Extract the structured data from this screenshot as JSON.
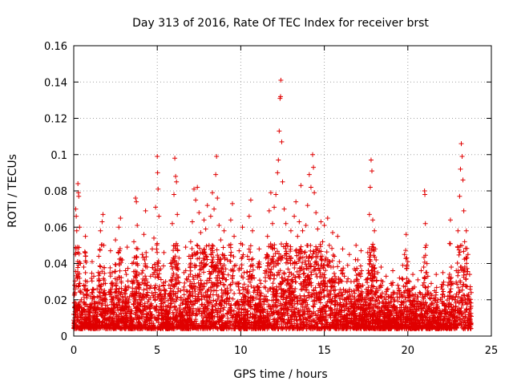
{
  "chart_data": {
    "type": "scatter",
    "title": "Day 313 of 2016, Rate Of TEC Index for receiver brst",
    "xlabel": "GPS time / hours",
    "ylabel": "ROTI / TECUs",
    "xlim": [
      0,
      25
    ],
    "ylim": [
      0,
      0.16
    ],
    "x_ticks": [
      0,
      5,
      10,
      15,
      20,
      25
    ],
    "y_ticks": [
      0,
      0.02,
      0.04,
      0.06,
      0.08,
      0.1,
      0.12,
      0.14,
      0.16
    ],
    "x_tick_labels": [
      "0",
      "5",
      "10",
      "15",
      "20",
      "25"
    ],
    "y_tick_labels": [
      "0",
      "0.02",
      "0.04",
      "0.06",
      "0.08",
      "0.1",
      "0.12",
      "0.14",
      "0.16"
    ],
    "grid": true,
    "marker": "+",
    "color": "#e00000",
    "series": [
      {
        "points": [
          [
            0.0,
            0.012
          ],
          [
            0.05,
            0.028
          ],
          [
            0.1,
            0.045
          ],
          [
            0.12,
            0.07
          ],
          [
            0.15,
            0.066
          ],
          [
            0.18,
            0.058
          ],
          [
            0.2,
            0.032
          ],
          [
            0.25,
            0.084
          ],
          [
            0.28,
            0.079
          ],
          [
            0.3,
            0.077
          ],
          [
            0.35,
            0.06
          ],
          [
            0.4,
            0.04
          ],
          [
            0.45,
            0.02
          ],
          [
            0.5,
            0.013
          ],
          [
            0.6,
            0.038
          ],
          [
            0.7,
            0.055
          ],
          [
            0.8,
            0.03
          ],
          [
            0.9,
            0.015
          ],
          [
            1.0,
            0.022
          ],
          [
            1.1,
            0.041
          ],
          [
            1.2,
            0.033
          ],
          [
            1.3,
            0.018
          ],
          [
            1.4,
            0.026
          ],
          [
            1.5,
            0.044
          ],
          [
            1.6,
            0.058
          ],
          [
            1.7,
            0.063
          ],
          [
            1.75,
            0.067
          ],
          [
            1.8,
            0.05
          ],
          [
            1.9,
            0.029
          ],
          [
            2.0,
            0.017
          ],
          [
            2.1,
            0.024
          ],
          [
            2.2,
            0.047
          ],
          [
            2.3,
            0.035
          ],
          [
            2.4,
            0.021
          ],
          [
            2.5,
            0.053
          ],
          [
            2.6,
            0.031
          ],
          [
            2.7,
            0.06
          ],
          [
            2.8,
            0.065
          ],
          [
            2.9,
            0.042
          ],
          [
            3.0,
            0.019
          ],
          [
            3.1,
            0.036
          ],
          [
            3.2,
            0.049
          ],
          [
            3.3,
            0.027
          ],
          [
            3.4,
            0.014
          ],
          [
            3.5,
            0.04
          ],
          [
            3.6,
            0.052
          ],
          [
            3.7,
            0.076
          ],
          [
            3.75,
            0.074
          ],
          [
            3.8,
            0.061
          ],
          [
            3.9,
            0.034
          ],
          [
            4.0,
            0.023
          ],
          [
            4.1,
            0.045
          ],
          [
            4.2,
            0.056
          ],
          [
            4.3,
            0.069
          ],
          [
            4.4,
            0.038
          ],
          [
            4.5,
            0.02
          ],
          [
            4.6,
            0.033
          ],
          [
            4.7,
            0.048
          ],
          [
            4.8,
            0.054
          ],
          [
            4.9,
            0.071
          ],
          [
            5.0,
            0.099
          ],
          [
            5.02,
            0.09
          ],
          [
            5.05,
            0.081
          ],
          [
            5.1,
            0.066
          ],
          [
            5.2,
            0.037
          ],
          [
            5.3,
            0.022
          ],
          [
            5.4,
            0.046
          ],
          [
            5.5,
            0.03
          ],
          [
            5.6,
            0.016
          ],
          [
            5.7,
            0.028
          ],
          [
            5.8,
            0.04
          ],
          [
            5.9,
            0.062
          ],
          [
            6.0,
            0.078
          ],
          [
            6.05,
            0.098
          ],
          [
            6.1,
            0.088
          ],
          [
            6.15,
            0.085
          ],
          [
            6.2,
            0.067
          ],
          [
            6.3,
            0.043
          ],
          [
            6.4,
            0.025
          ],
          [
            6.5,
            0.018
          ],
          [
            6.6,
            0.035
          ],
          [
            6.7,
            0.049
          ],
          [
            6.8,
            0.031
          ],
          [
            6.9,
            0.044
          ],
          [
            7.0,
            0.052
          ],
          [
            7.1,
            0.063
          ],
          [
            7.2,
            0.081
          ],
          [
            7.3,
            0.075
          ],
          [
            7.4,
            0.082
          ],
          [
            7.5,
            0.068
          ],
          [
            7.6,
            0.057
          ],
          [
            7.7,
            0.046
          ],
          [
            7.8,
            0.064
          ],
          [
            7.9,
            0.059
          ],
          [
            8.0,
            0.072
          ],
          [
            8.1,
            0.05
          ],
          [
            8.2,
            0.066
          ],
          [
            8.3,
            0.079
          ],
          [
            8.4,
            0.07
          ],
          [
            8.5,
            0.089
          ],
          [
            8.55,
            0.099
          ],
          [
            8.6,
            0.076
          ],
          [
            8.7,
            0.061
          ],
          [
            8.8,
            0.053
          ],
          [
            8.9,
            0.045
          ],
          [
            9.0,
            0.058
          ],
          [
            9.1,
            0.037
          ],
          [
            9.2,
            0.042
          ],
          [
            9.3,
            0.05
          ],
          [
            9.4,
            0.064
          ],
          [
            9.5,
            0.073
          ],
          [
            9.6,
            0.055
          ],
          [
            9.7,
            0.039
          ],
          [
            9.8,
            0.029
          ],
          [
            9.9,
            0.047
          ],
          [
            10.0,
            0.051
          ],
          [
            10.1,
            0.06
          ],
          [
            10.2,
            0.035
          ],
          [
            10.3,
            0.026
          ],
          [
            10.4,
            0.044
          ],
          [
            10.5,
            0.066
          ],
          [
            10.6,
            0.075
          ],
          [
            10.7,
            0.058
          ],
          [
            10.8,
            0.032
          ],
          [
            10.9,
            0.021
          ],
          [
            11.0,
            0.038
          ],
          [
            11.1,
            0.048
          ],
          [
            11.2,
            0.029
          ],
          [
            11.3,
            0.015
          ],
          [
            11.4,
            0.027
          ],
          [
            11.5,
            0.043
          ],
          [
            11.6,
            0.055
          ],
          [
            11.7,
            0.069
          ],
          [
            11.8,
            0.079
          ],
          [
            11.9,
            0.062
          ],
          [
            12.0,
            0.071
          ],
          [
            12.1,
            0.078
          ],
          [
            12.2,
            0.09
          ],
          [
            12.25,
            0.097
          ],
          [
            12.3,
            0.113
          ],
          [
            12.35,
            0.131
          ],
          [
            12.38,
            0.132
          ],
          [
            12.4,
            0.141
          ],
          [
            12.45,
            0.107
          ],
          [
            12.5,
            0.085
          ],
          [
            12.6,
            0.07
          ],
          [
            12.7,
            0.062
          ],
          [
            12.8,
            0.05
          ],
          [
            12.9,
            0.044
          ],
          [
            13.0,
            0.058
          ],
          [
            13.1,
            0.04
          ],
          [
            13.2,
            0.066
          ],
          [
            13.3,
            0.074
          ],
          [
            13.4,
            0.055
          ],
          [
            13.5,
            0.063
          ],
          [
            13.6,
            0.083
          ],
          [
            13.7,
            0.058
          ],
          [
            13.8,
            0.046
          ],
          [
            13.9,
            0.061
          ],
          [
            14.0,
            0.072
          ],
          [
            14.1,
            0.089
          ],
          [
            14.2,
            0.082
          ],
          [
            14.3,
            0.1
          ],
          [
            14.35,
            0.093
          ],
          [
            14.4,
            0.079
          ],
          [
            14.5,
            0.068
          ],
          [
            14.6,
            0.059
          ],
          [
            14.7,
            0.047
          ],
          [
            14.8,
            0.063
          ],
          [
            14.9,
            0.052
          ],
          [
            15.0,
            0.061
          ],
          [
            15.1,
            0.043
          ],
          [
            15.2,
            0.065
          ],
          [
            15.3,
            0.05
          ],
          [
            15.4,
            0.038
          ],
          [
            15.5,
            0.057
          ],
          [
            15.6,
            0.044
          ],
          [
            15.7,
            0.031
          ],
          [
            15.8,
            0.055
          ],
          [
            15.9,
            0.041
          ],
          [
            16.0,
            0.036
          ],
          [
            16.1,
            0.048
          ],
          [
            16.2,
            0.033
          ],
          [
            16.3,
            0.025
          ],
          [
            16.4,
            0.039
          ],
          [
            16.5,
            0.045
          ],
          [
            16.6,
            0.03
          ],
          [
            16.7,
            0.022
          ],
          [
            16.8,
            0.037
          ],
          [
            16.9,
            0.05
          ],
          [
            17.0,
            0.042
          ],
          [
            17.1,
            0.034
          ],
          [
            17.2,
            0.047
          ],
          [
            17.3,
            0.028
          ],
          [
            17.4,
            0.02
          ],
          [
            17.5,
            0.031
          ],
          [
            17.6,
            0.046
          ],
          [
            17.7,
            0.067
          ],
          [
            17.75,
            0.082
          ],
          [
            17.8,
            0.097
          ],
          [
            17.85,
            0.091
          ],
          [
            17.9,
            0.064
          ],
          [
            18.0,
            0.058
          ],
          [
            18.1,
            0.042
          ],
          [
            18.2,
            0.035
          ],
          [
            18.3,
            0.027
          ],
          [
            18.4,
            0.038
          ],
          [
            18.5,
            0.03
          ],
          [
            18.6,
            0.021
          ],
          [
            18.7,
            0.033
          ],
          [
            18.8,
            0.026
          ],
          [
            18.9,
            0.017
          ],
          [
            19.0,
            0.029
          ],
          [
            19.1,
            0.036
          ],
          [
            19.2,
            0.024
          ],
          [
            19.3,
            0.015
          ],
          [
            19.4,
            0.028
          ],
          [
            19.5,
            0.032
          ],
          [
            19.6,
            0.023
          ],
          [
            19.7,
            0.039
          ],
          [
            19.8,
            0.045
          ],
          [
            19.9,
            0.056
          ],
          [
            20.0,
            0.041
          ],
          [
            20.1,
            0.03
          ],
          [
            20.2,
            0.022
          ],
          [
            20.3,
            0.034
          ],
          [
            20.4,
            0.027
          ],
          [
            20.5,
            0.019
          ],
          [
            20.6,
            0.031
          ],
          [
            20.7,
            0.024
          ],
          [
            20.8,
            0.036
          ],
          [
            20.9,
            0.028
          ],
          [
            21.0,
            0.08
          ],
          [
            21.02,
            0.078
          ],
          [
            21.05,
            0.062
          ],
          [
            21.1,
            0.05
          ],
          [
            21.2,
            0.033
          ],
          [
            21.3,
            0.021
          ],
          [
            21.4,
            0.029
          ],
          [
            21.5,
            0.018
          ],
          [
            21.6,
            0.025
          ],
          [
            21.7,
            0.034
          ],
          [
            21.8,
            0.02
          ],
          [
            21.9,
            0.013
          ],
          [
            22.0,
            0.027
          ],
          [
            22.1,
            0.035
          ],
          [
            22.2,
            0.022
          ],
          [
            22.3,
            0.016
          ],
          [
            22.4,
            0.028
          ],
          [
            22.5,
            0.051
          ],
          [
            22.55,
            0.064
          ],
          [
            22.6,
            0.038
          ],
          [
            22.7,
            0.029
          ],
          [
            22.8,
            0.02
          ],
          [
            22.9,
            0.036
          ],
          [
            23.0,
            0.058
          ],
          [
            23.1,
            0.077
          ],
          [
            23.15,
            0.092
          ],
          [
            23.2,
            0.106
          ],
          [
            23.25,
            0.099
          ],
          [
            23.3,
            0.086
          ],
          [
            23.35,
            0.069
          ],
          [
            23.4,
            0.052
          ],
          [
            23.5,
            0.058
          ],
          [
            23.6,
            0.045
          ],
          [
            23.7,
            0.034
          ],
          [
            23.8,
            0.024
          ]
        ]
      }
    ]
  }
}
